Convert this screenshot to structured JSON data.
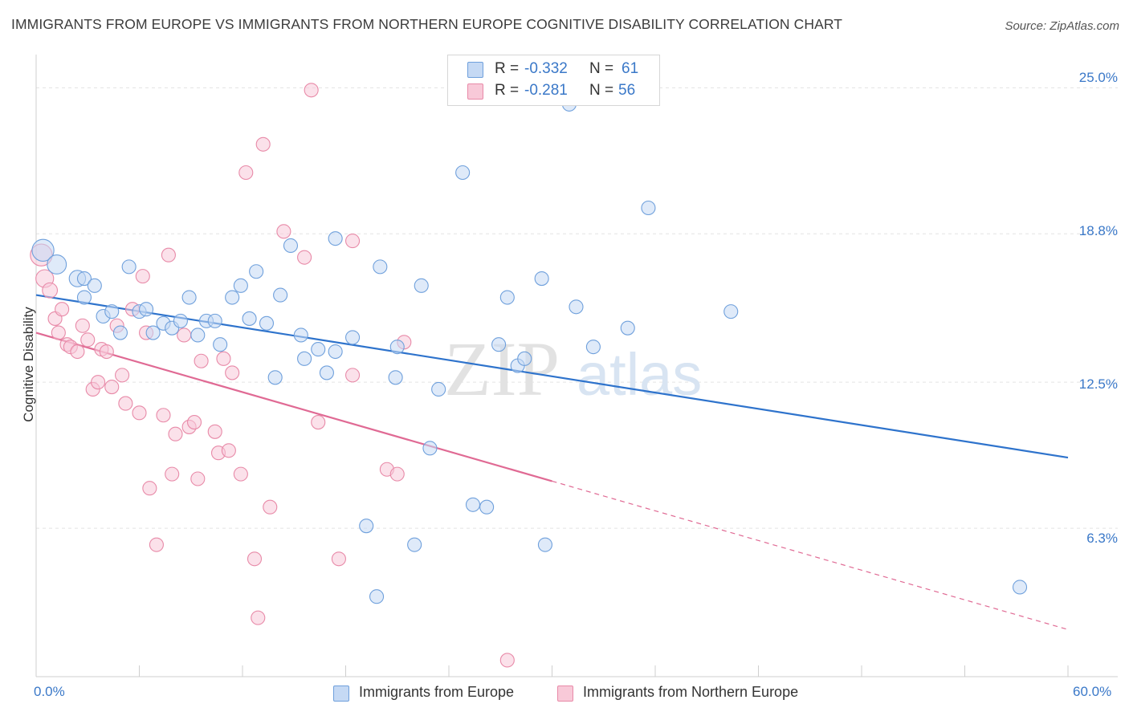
{
  "title": "IMMIGRANTS FROM EUROPE VS IMMIGRANTS FROM NORTHERN EUROPE COGNITIVE DISABILITY CORRELATION CHART",
  "source": "Source: ZipAtlas.com",
  "legend_stats": [
    {
      "r_label": "R = ",
      "r_value": "-0.332",
      "n_label": "N = ",
      "n_value": "61"
    },
    {
      "r_label": "R = ",
      "r_value": "-0.281",
      "n_label": "N = ",
      "n_value": "56"
    }
  ],
  "watermark": {
    "part1": "ZIP",
    "part2": "atlas"
  },
  "colors": {
    "blue": "#6fa0dc",
    "blue_fill": "#c5d9f4",
    "blue_line": "#2e73cc",
    "pink": "#e88aa8",
    "pink_fill": "#f8c9d8",
    "pink_line": "#e06a94",
    "tick_text": "#3a78c8"
  },
  "chart_data": {
    "type": "scatter",
    "title": "IMMIGRANTS FROM EUROPE VS IMMIGRANTS FROM NORTHERN EUROPE COGNITIVE DISABILITY CORRELATION CHART",
    "xlabel": "",
    "ylabel": "Cognitive Disability",
    "xlim": [
      0,
      60
    ],
    "ylim": [
      0,
      26
    ],
    "x_tick_labels": [
      "0.0%",
      "60.0%"
    ],
    "y_ticks": [
      6.3,
      12.5,
      18.8,
      25.0
    ],
    "y_tick_labels": [
      "6.3%",
      "12.5%",
      "18.8%",
      "25.0%"
    ],
    "grid": true,
    "legend_position": "bottom",
    "series": [
      {
        "name": "Immigrants from Europe",
        "color": "#6fa0dc",
        "r": -0.332,
        "n": 61,
        "trend": {
          "x": [
            0,
            60
          ],
          "y": [
            16.2,
            9.3
          ],
          "dashed_from": null
        },
        "points": [
          [
            0.4,
            18.1
          ],
          [
            1.2,
            17.5
          ],
          [
            2.4,
            16.9
          ],
          [
            2.8,
            16.9
          ],
          [
            3.4,
            16.6
          ],
          [
            2.8,
            16.1
          ],
          [
            3.9,
            15.3
          ],
          [
            4.4,
            15.5
          ],
          [
            5.4,
            17.4
          ],
          [
            6.0,
            15.5
          ],
          [
            6.4,
            15.6
          ],
          [
            4.9,
            14.6
          ],
          [
            6.8,
            14.6
          ],
          [
            7.4,
            15.0
          ],
          [
            7.9,
            14.8
          ],
          [
            8.4,
            15.1
          ],
          [
            8.9,
            16.1
          ],
          [
            9.4,
            14.5
          ],
          [
            9.9,
            15.1
          ],
          [
            10.4,
            15.1
          ],
          [
            10.7,
            14.1
          ],
          [
            11.4,
            16.1
          ],
          [
            11.9,
            16.6
          ],
          [
            12.4,
            15.2
          ],
          [
            12.8,
            17.2
          ],
          [
            13.4,
            15.0
          ],
          [
            13.9,
            12.7
          ],
          [
            14.2,
            16.2
          ],
          [
            14.8,
            18.3
          ],
          [
            15.4,
            14.5
          ],
          [
            15.6,
            13.5
          ],
          [
            16.4,
            13.9
          ],
          [
            16.9,
            12.9
          ],
          [
            17.4,
            13.8
          ],
          [
            17.4,
            18.6
          ],
          [
            18.4,
            14.4
          ],
          [
            20.0,
            17.4
          ],
          [
            20.9,
            12.7
          ],
          [
            21.0,
            14.0
          ],
          [
            22.4,
            16.6
          ],
          [
            22.9,
            9.7
          ],
          [
            23.4,
            12.2
          ],
          [
            24.8,
            21.4
          ],
          [
            25.4,
            7.3
          ],
          [
            26.2,
            7.2
          ],
          [
            26.9,
            14.1
          ],
          [
            27.4,
            16.1
          ],
          [
            28.0,
            13.2
          ],
          [
            28.4,
            13.5
          ],
          [
            29.4,
            16.9
          ],
          [
            29.6,
            5.6
          ],
          [
            31.4,
            15.7
          ],
          [
            32.4,
            14.0
          ],
          [
            34.4,
            14.8
          ],
          [
            35.6,
            19.9
          ],
          [
            40.4,
            15.5
          ],
          [
            19.2,
            6.4
          ],
          [
            19.8,
            3.4
          ],
          [
            22.0,
            5.6
          ],
          [
            57.2,
            3.8
          ],
          [
            31.0,
            24.3
          ]
        ],
        "sizes": [
          1.6,
          1.4,
          1.2,
          1.0,
          1.0,
          1.0,
          1,
          1,
          1,
          1,
          1,
          1,
          1,
          1,
          1,
          1,
          1,
          1,
          1,
          1,
          1,
          1,
          1,
          1,
          1,
          1,
          1,
          1,
          1,
          1,
          1,
          1,
          1,
          1,
          1,
          1,
          1,
          1,
          1,
          1,
          1,
          1,
          1,
          1,
          1,
          1,
          1,
          1,
          1,
          1,
          1,
          1,
          1,
          1,
          1,
          1,
          1,
          1,
          1,
          1,
          1
        ]
      },
      {
        "name": "Immigrants from Northern Europe",
        "color": "#e88aa8",
        "r": -0.281,
        "n": 56,
        "trend": {
          "x": [
            0,
            60
          ],
          "y": [
            14.6,
            2.0
          ],
          "dashed_from": 30
        },
        "points": [
          [
            0.3,
            17.9
          ],
          [
            0.5,
            16.9
          ],
          [
            0.8,
            16.4
          ],
          [
            1.1,
            15.2
          ],
          [
            1.3,
            14.6
          ],
          [
            1.8,
            14.1
          ],
          [
            2.0,
            14.0
          ],
          [
            2.4,
            13.8
          ],
          [
            1.5,
            15.6
          ],
          [
            2.7,
            14.9
          ],
          [
            3.0,
            14.3
          ],
          [
            3.3,
            12.2
          ],
          [
            3.6,
            12.5
          ],
          [
            3.8,
            13.9
          ],
          [
            4.1,
            13.8
          ],
          [
            4.4,
            12.3
          ],
          [
            4.7,
            14.9
          ],
          [
            5.0,
            12.8
          ],
          [
            5.2,
            11.6
          ],
          [
            5.6,
            15.6
          ],
          [
            6.0,
            11.2
          ],
          [
            6.2,
            17.0
          ],
          [
            6.4,
            14.6
          ],
          [
            6.6,
            8.0
          ],
          [
            7.0,
            5.6
          ],
          [
            7.4,
            11.1
          ],
          [
            7.7,
            17.9
          ],
          [
            7.9,
            8.6
          ],
          [
            8.1,
            10.3
          ],
          [
            8.6,
            14.5
          ],
          [
            8.9,
            10.6
          ],
          [
            9.2,
            10.8
          ],
          [
            9.4,
            8.4
          ],
          [
            9.6,
            13.4
          ],
          [
            10.4,
            10.4
          ],
          [
            10.6,
            9.5
          ],
          [
            10.9,
            13.5
          ],
          [
            11.2,
            9.6
          ],
          [
            11.4,
            12.9
          ],
          [
            11.9,
            8.6
          ],
          [
            12.2,
            21.4
          ],
          [
            12.7,
            5.0
          ],
          [
            12.9,
            2.5
          ],
          [
            13.2,
            22.6
          ],
          [
            13.6,
            7.2
          ],
          [
            14.4,
            18.9
          ],
          [
            15.6,
            17.8
          ],
          [
            16.4,
            10.8
          ],
          [
            17.6,
            5.0
          ],
          [
            18.4,
            12.8
          ],
          [
            18.4,
            18.5
          ],
          [
            16.0,
            24.9
          ],
          [
            20.4,
            8.8
          ],
          [
            21.0,
            8.6
          ],
          [
            21.4,
            14.2
          ],
          [
            27.4,
            0.7
          ]
        ],
        "sizes": [
          1.6,
          1.3,
          1.1,
          1,
          1,
          1,
          1,
          1,
          1,
          1,
          1,
          1,
          1,
          1,
          1,
          1,
          1,
          1,
          1,
          1,
          1,
          1,
          1,
          1,
          1,
          1,
          1,
          1,
          1,
          1,
          1,
          1,
          1,
          1,
          1,
          1,
          1,
          1,
          1,
          1,
          1,
          1,
          1,
          1,
          1,
          1,
          1,
          1,
          1,
          1,
          1,
          1,
          1,
          1,
          1,
          1
        ]
      }
    ]
  }
}
